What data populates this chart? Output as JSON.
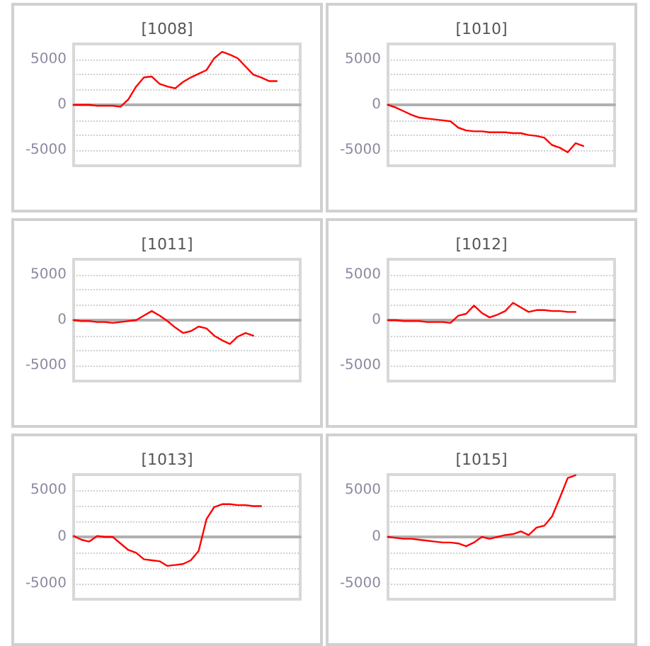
{
  "chart_data": [
    {
      "type": "line",
      "title": "[1008]",
      "categories": [
        null,
        null,
        null,
        null,
        null,
        null,
        null,
        null,
        null,
        null,
        null,
        null,
        null,
        null,
        null,
        null,
        null,
        null,
        null,
        null,
        null,
        null,
        null,
        null,
        null,
        null,
        null,
        null,
        null,
        null
      ],
      "series": [
        {
          "color": "#ff0000",
          "values": [
            0,
            0,
            0,
            -100,
            -100,
            -100,
            -200,
            600,
            2000,
            3000,
            3100,
            2300,
            2000,
            1800,
            2500,
            3000,
            3400,
            3800,
            5100,
            5800,
            5500,
            5100,
            4200,
            3300,
            3000,
            2600,
            2600,
            null,
            null,
            null
          ]
        }
      ],
      "ylim": [
        -6667,
        6667
      ],
      "yticks": [
        {
          "value": -5000,
          "label": "-5000"
        },
        {
          "value": -3333,
          "label": null
        },
        {
          "value": -1667,
          "label": null
        },
        {
          "value": 0,
          "label": "0"
        },
        {
          "value": 1667,
          "label": null
        },
        {
          "value": 3333,
          "label": null
        },
        {
          "value": 5000,
          "label": "5000"
        }
      ],
      "grid": "y",
      "tick_labels": "y",
      "marker": "none",
      "line_style": "solid"
    },
    {
      "type": "line",
      "title": "[1010]",
      "categories": [
        null,
        null,
        null,
        null,
        null,
        null,
        null,
        null,
        null,
        null,
        null,
        null,
        null,
        null,
        null,
        null,
        null,
        null,
        null,
        null,
        null,
        null,
        null,
        null,
        null,
        null,
        null,
        null,
        null,
        null
      ],
      "series": [
        {
          "color": "#ff0000",
          "values": [
            0,
            -300,
            -700,
            -1100,
            -1400,
            -1500,
            -1600,
            -1700,
            -1800,
            -2500,
            -2800,
            -2900,
            -2900,
            -3000,
            -3000,
            -3000,
            -3100,
            -3100,
            -3300,
            -3400,
            -3600,
            -4400,
            -4700,
            -5200,
            -4200,
            -4500,
            null,
            null,
            null,
            null
          ]
        }
      ],
      "ylim": [
        -6667,
        6667
      ],
      "yticks": [
        {
          "value": -5000,
          "label": "-5000"
        },
        {
          "value": -3333,
          "label": null
        },
        {
          "value": -1667,
          "label": null
        },
        {
          "value": 0,
          "label": "0"
        },
        {
          "value": 1667,
          "label": null
        },
        {
          "value": 3333,
          "label": null
        },
        {
          "value": 5000,
          "label": "5000"
        }
      ],
      "grid": "y",
      "tick_labels": "y",
      "marker": "none",
      "line_style": "solid"
    },
    {
      "type": "line",
      "title": "[1011]",
      "categories": [
        null,
        null,
        null,
        null,
        null,
        null,
        null,
        null,
        null,
        null,
        null,
        null,
        null,
        null,
        null,
        null,
        null,
        null,
        null,
        null,
        null,
        null,
        null,
        null,
        null,
        null,
        null,
        null,
        null,
        null
      ],
      "series": [
        {
          "color": "#ff0000",
          "values": [
            0,
            -100,
            -100,
            -200,
            -200,
            -300,
            -200,
            -100,
            0,
            500,
            1000,
            500,
            -100,
            -800,
            -1400,
            -1200,
            -700,
            -900,
            -1700,
            -2200,
            -2600,
            -1800,
            -1400,
            -1700,
            null,
            null,
            null,
            null,
            null,
            null
          ]
        }
      ],
      "ylim": [
        -6667,
        6667
      ],
      "yticks": [
        {
          "value": -5000,
          "label": "-5000"
        },
        {
          "value": -3333,
          "label": null
        },
        {
          "value": -1667,
          "label": null
        },
        {
          "value": 0,
          "label": "0"
        },
        {
          "value": 1667,
          "label": null
        },
        {
          "value": 3333,
          "label": null
        },
        {
          "value": 5000,
          "label": "5000"
        }
      ],
      "grid": "y",
      "tick_labels": "y",
      "marker": "none",
      "line_style": "solid"
    },
    {
      "type": "line",
      "title": "[1012]",
      "categories": [
        null,
        null,
        null,
        null,
        null,
        null,
        null,
        null,
        null,
        null,
        null,
        null,
        null,
        null,
        null,
        null,
        null,
        null,
        null,
        null,
        null,
        null,
        null,
        null,
        null,
        null,
        null,
        null,
        null,
        null
      ],
      "series": [
        {
          "color": "#ff0000",
          "values": [
            0,
            0,
            -100,
            -100,
            -100,
            -200,
            -200,
            -200,
            -300,
            500,
            700,
            1600,
            800,
            300,
            600,
            1000,
            1900,
            1400,
            900,
            1100,
            1100,
            1000,
            1000,
            900,
            900,
            null,
            null,
            null,
            null,
            null
          ]
        }
      ],
      "ylim": [
        -6667,
        6667
      ],
      "yticks": [
        {
          "value": -5000,
          "label": "-5000"
        },
        {
          "value": -3333,
          "label": null
        },
        {
          "value": -1667,
          "label": null
        },
        {
          "value": 0,
          "label": "0"
        },
        {
          "value": 1667,
          "label": null
        },
        {
          "value": 3333,
          "label": null
        },
        {
          "value": 5000,
          "label": "5000"
        }
      ],
      "grid": "y",
      "tick_labels": "y",
      "marker": "none",
      "line_style": "solid"
    },
    {
      "type": "line",
      "title": "[1013]",
      "categories": [
        null,
        null,
        null,
        null,
        null,
        null,
        null,
        null,
        null,
        null,
        null,
        null,
        null,
        null,
        null,
        null,
        null,
        null,
        null,
        null,
        null,
        null,
        null,
        null,
        null,
        null,
        null,
        null,
        null,
        null
      ],
      "series": [
        {
          "color": "#ff0000",
          "values": [
            100,
            -300,
            -500,
            100,
            0,
            0,
            -700,
            -1400,
            -1700,
            -2400,
            -2500,
            -2600,
            -3100,
            -3000,
            -2900,
            -2500,
            -1500,
            1900,
            3200,
            3500,
            3500,
            3400,
            3400,
            3300,
            3300,
            null,
            null,
            null,
            null,
            null
          ]
        }
      ],
      "ylim": [
        -6667,
        6667
      ],
      "yticks": [
        {
          "value": -5000,
          "label": "-5000"
        },
        {
          "value": -3333,
          "label": null
        },
        {
          "value": -1667,
          "label": null
        },
        {
          "value": 0,
          "label": "0"
        },
        {
          "value": 1667,
          "label": null
        },
        {
          "value": 3333,
          "label": null
        },
        {
          "value": 5000,
          "label": "5000"
        }
      ],
      "grid": "y",
      "tick_labels": "y",
      "marker": "none",
      "line_style": "solid"
    },
    {
      "type": "line",
      "title": "[1015]",
      "categories": [
        null,
        null,
        null,
        null,
        null,
        null,
        null,
        null,
        null,
        null,
        null,
        null,
        null,
        null,
        null,
        null,
        null,
        null,
        null,
        null,
        null,
        null,
        null,
        null,
        null,
        null,
        null,
        null,
        null,
        null
      ],
      "series": [
        {
          "color": "#ff0000",
          "values": [
            0,
            -100,
            -200,
            -200,
            -300,
            -400,
            -500,
            -600,
            -600,
            -700,
            -1000,
            -600,
            0,
            -200,
            0,
            200,
            300,
            600,
            200,
            1000,
            1200,
            2200,
            4200,
            6300,
            6600,
            null,
            null,
            null,
            null,
            null
          ]
        }
      ],
      "ylim": [
        -6667,
        6667
      ],
      "yticks": [
        {
          "value": -5000,
          "label": "-5000"
        },
        {
          "value": -3333,
          "label": null
        },
        {
          "value": -1667,
          "label": null
        },
        {
          "value": 0,
          "label": "0"
        },
        {
          "value": 1667,
          "label": null
        },
        {
          "value": 3333,
          "label": null
        },
        {
          "value": 5000,
          "label": "5000"
        }
      ],
      "grid": "y",
      "tick_labels": "y",
      "marker": "none",
      "line_style": "solid"
    }
  ]
}
